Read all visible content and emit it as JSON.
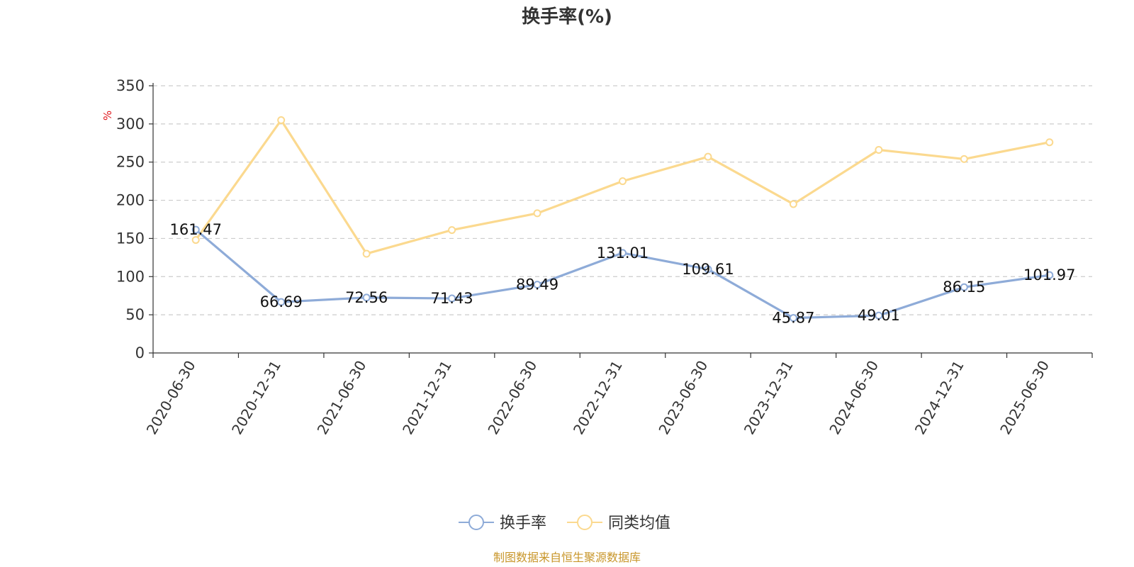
{
  "chart_data": {
    "type": "line",
    "title": "换手率(%)",
    "ylabel": "%",
    "ylim": [
      0,
      350
    ],
    "yticks": [
      0,
      50,
      100,
      150,
      200,
      250,
      300,
      350
    ],
    "grid": true,
    "legend_position": "bottom",
    "categories": [
      "2020-06-30",
      "2020-12-31",
      "2021-06-30",
      "2021-12-31",
      "2022-06-30",
      "2022-12-31",
      "2023-06-30",
      "2023-12-31",
      "2024-06-30",
      "2024-12-31",
      "2025-06-30"
    ],
    "series": [
      {
        "name": "换手率",
        "color": "#8eabd8",
        "values": [
          161.47,
          66.69,
          72.56,
          71.43,
          89.49,
          131.01,
          109.61,
          45.87,
          49.01,
          86.15,
          101.97
        ],
        "labels": [
          "161.47",
          "66.69",
          "72.56",
          "71.43",
          "89.49",
          "131.01",
          "109.61",
          "45.87",
          "49.01",
          "86.15",
          "101.97"
        ]
      },
      {
        "name": "同类均值",
        "color": "#fbd98f",
        "values": [
          148,
          305,
          130,
          161,
          183,
          225,
          257,
          195,
          266,
          254,
          276
        ]
      }
    ],
    "source": "制图数据来自恒生聚源数据库"
  }
}
